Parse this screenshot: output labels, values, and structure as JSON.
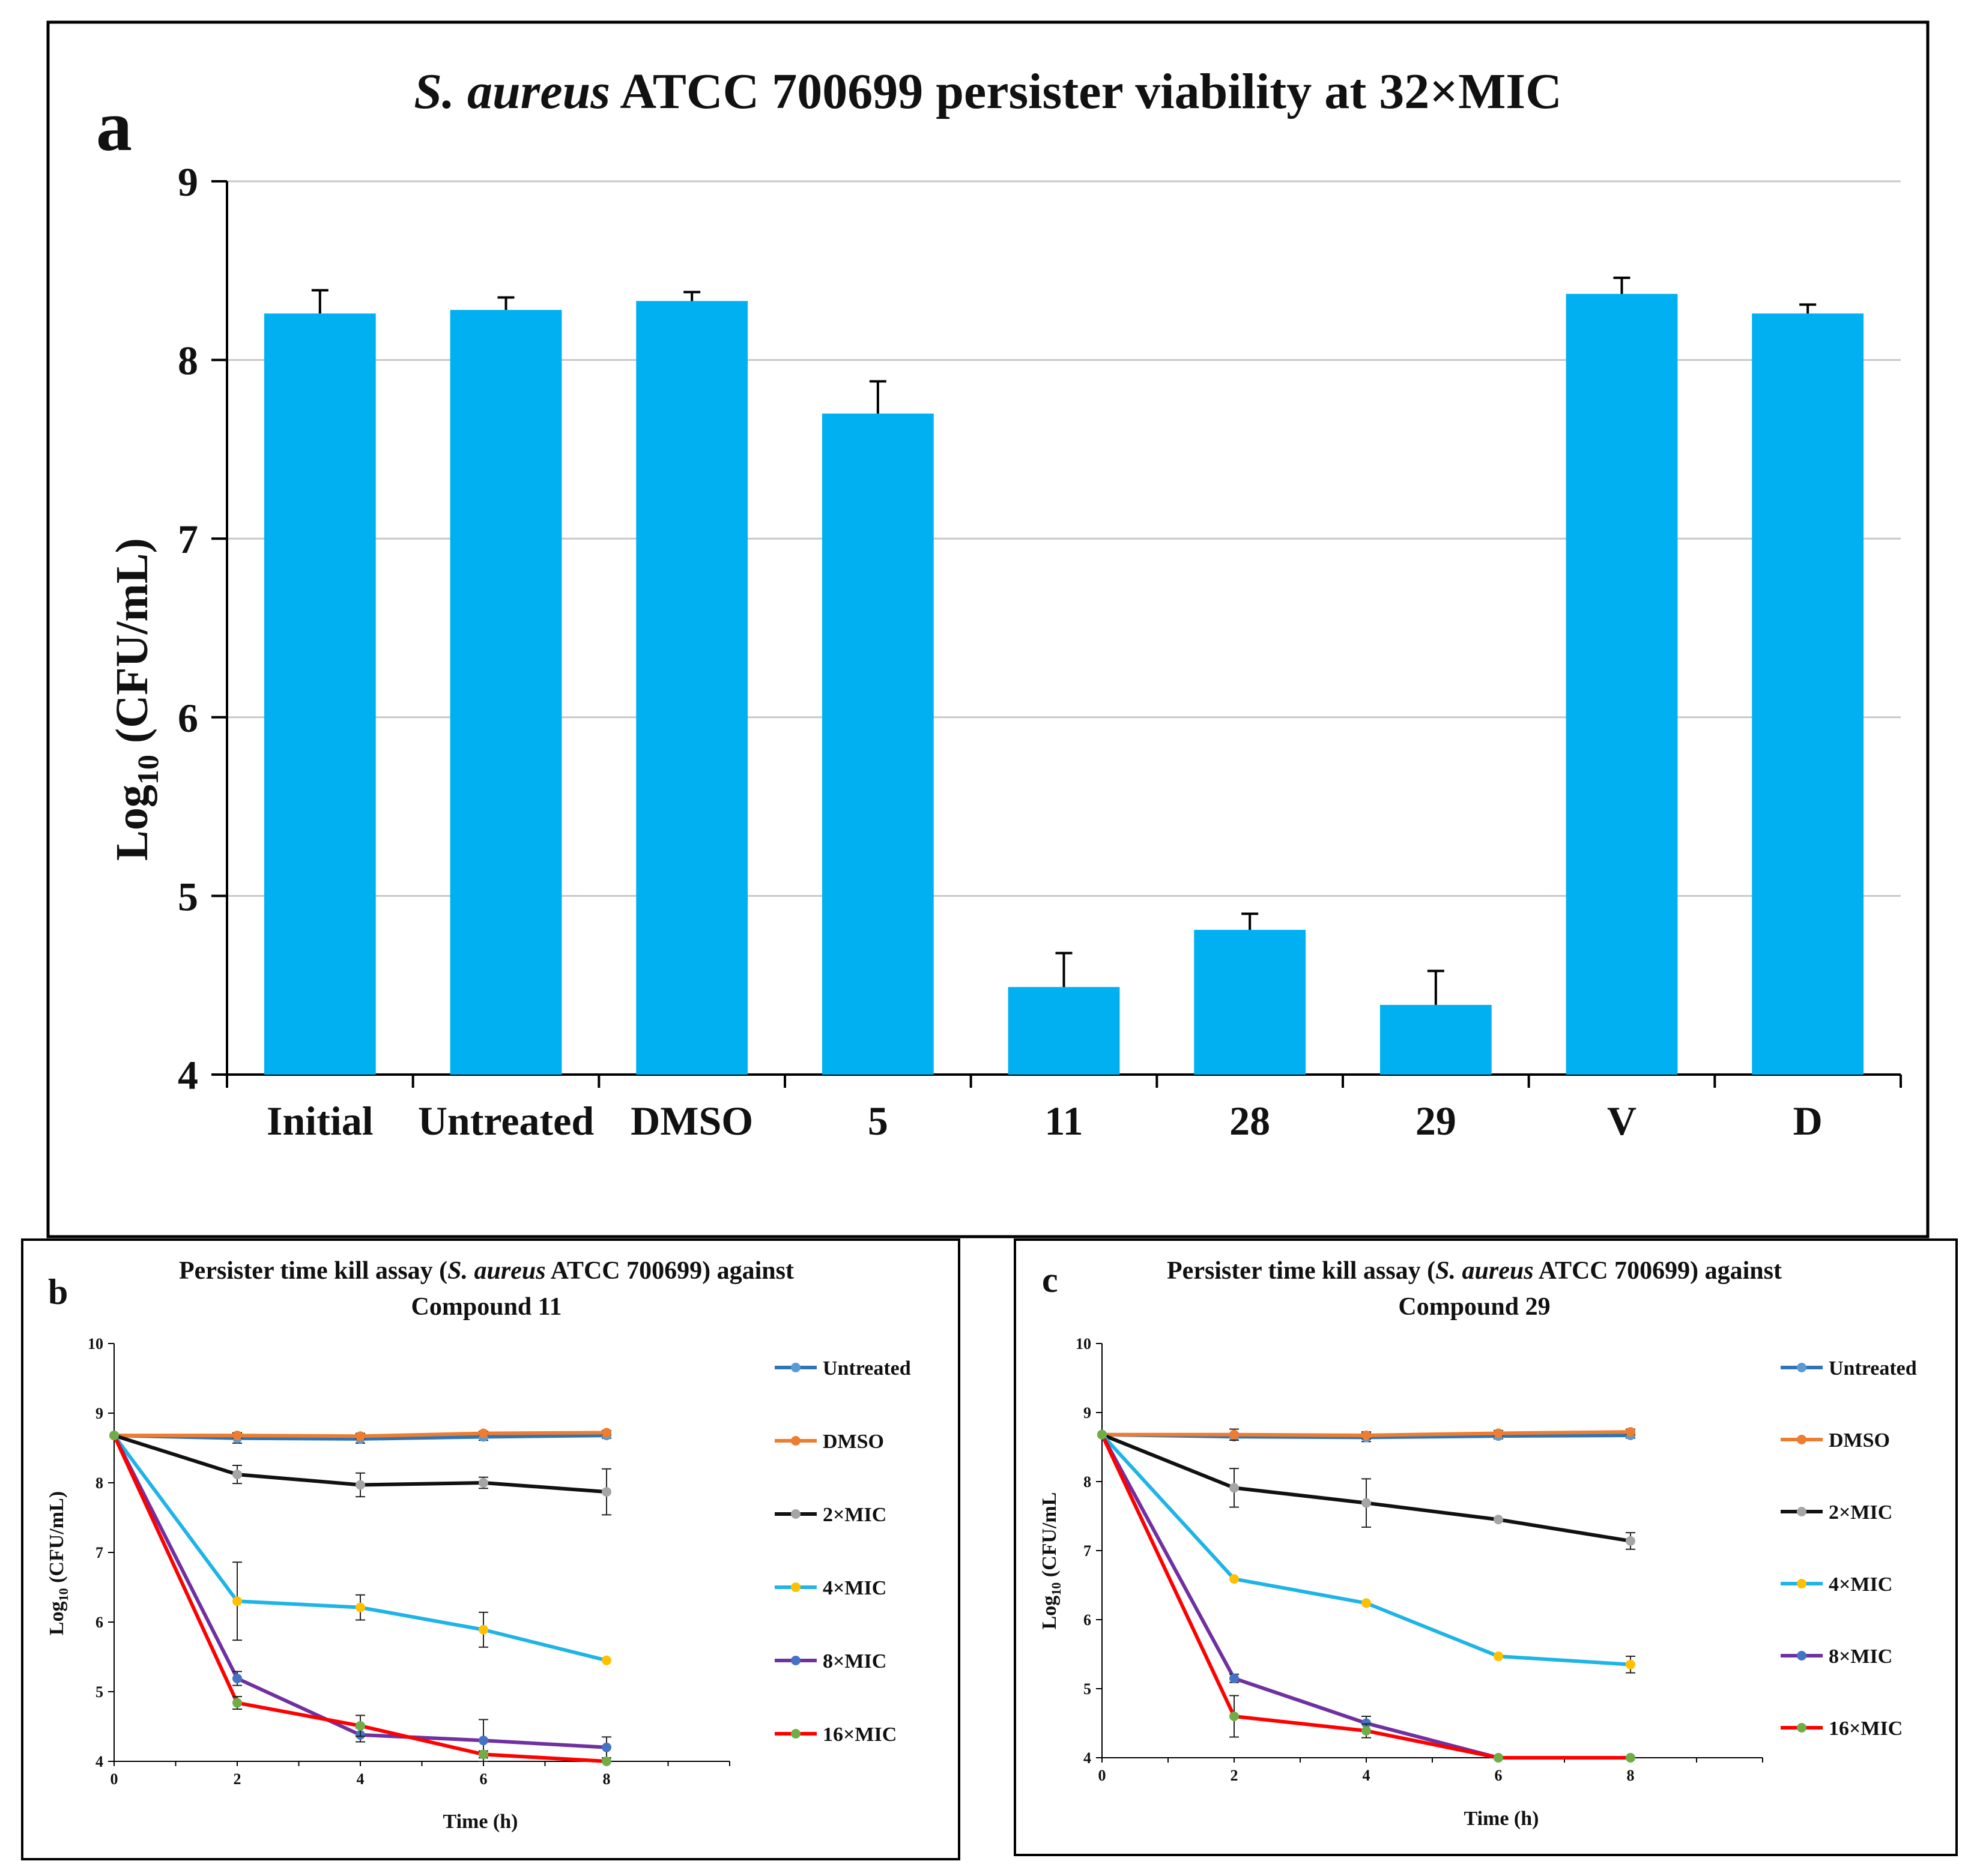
{
  "chart_data": [
    {
      "panel": "a",
      "type": "bar",
      "title": {
        "italic": "S. aureus",
        "rest": " ATCC 700699 persister viability at 32×MIC"
      },
      "xlabel": "",
      "ylabel": {
        "main": "Log",
        "sub": "10",
        "rest": " (CFU/mL)"
      },
      "ylim": [
        4,
        9
      ],
      "yticks": [
        4,
        5,
        6,
        7,
        8,
        9
      ],
      "grid": true,
      "bar_color": "#00b0f0",
      "categories": [
        "Initial",
        "Untreated",
        "DMSO",
        "5",
        "11",
        "28",
        "29",
        "V",
        "D"
      ],
      "values": [
        8.26,
        8.28,
        8.33,
        7.7,
        4.49,
        4.81,
        4.39,
        8.37,
        8.26
      ],
      "errors": [
        0.13,
        0.07,
        0.05,
        0.18,
        0.19,
        0.09,
        0.19,
        0.09,
        0.05
      ]
    },
    {
      "panel": "b",
      "type": "line",
      "title": [
        "Persister time kill assay (",
        "S. aureus",
        " ATCC 700699) against",
        "Compound 11"
      ],
      "xlabel": "Time (h)",
      "ylabel": {
        "main": "Log",
        "sub": "10",
        "rest": " (CFU/mL)"
      },
      "x": [
        0,
        2,
        4,
        6,
        8
      ],
      "xticks": [
        0,
        2,
        4,
        6,
        8
      ],
      "xlim": [
        0,
        10
      ],
      "ylim": [
        4,
        10
      ],
      "yticks": [
        4,
        5,
        6,
        7,
        8,
        9,
        10
      ],
      "legend": "right",
      "series": [
        {
          "name": "Untreated",
          "color": "#2e75b6",
          "marker": "#5b9bd5",
          "values": [
            8.68,
            8.64,
            8.63,
            8.66,
            8.68
          ],
          "errors": [
            0,
            0.07,
            0.06,
            0.05,
            0.04
          ]
        },
        {
          "name": "DMSO",
          "color": "#ed7d31",
          "marker": "#ed7d31",
          "values": [
            8.68,
            8.68,
            8.67,
            8.71,
            8.72
          ],
          "errors": [
            0,
            0.04,
            0.04,
            0.03,
            0.03
          ]
        },
        {
          "name": "2×MIC",
          "color": "#111111",
          "marker": "#a5a5a5",
          "values": [
            8.68,
            8.12,
            7.97,
            8.0,
            7.87
          ],
          "errors": [
            0,
            0.13,
            0.17,
            0.08,
            0.33
          ]
        },
        {
          "name": "4×MIC",
          "color": "#1eb4e6",
          "marker": "#ffc000",
          "values": [
            8.68,
            6.3,
            6.21,
            5.89,
            5.45
          ],
          "errors": [
            0,
            0.56,
            0.18,
            0.25,
            0
          ]
        },
        {
          "name": "8×MIC",
          "color": "#7030a0",
          "marker": "#4472c4",
          "values": [
            8.68,
            5.19,
            4.38,
            4.3,
            4.2
          ],
          "errors": [
            0,
            0.1,
            0.1,
            0.3,
            0.15
          ]
        },
        {
          "name": "16×MIC",
          "color": "#ff0000",
          "marker": "#70ad47",
          "values": [
            8.68,
            4.84,
            4.51,
            4.1,
            4.0
          ],
          "errors": [
            0,
            0.09,
            0.15,
            0.05,
            0
          ]
        }
      ]
    },
    {
      "panel": "c",
      "type": "line",
      "title": [
        "Persister time kill assay (",
        "S. aureus",
        " ATCC 700699) against",
        "Compound 29"
      ],
      "xlabel": "Time (h)",
      "ylabel": {
        "main": "Log",
        "sub": "10",
        "rest": " (CFU/mL"
      },
      "x": [
        0,
        2,
        4,
        6,
        8
      ],
      "xticks": [
        0,
        2,
        4,
        6,
        8
      ],
      "xlim": [
        0,
        10
      ],
      "ylim": [
        4,
        10
      ],
      "yticks": [
        4,
        5,
        6,
        7,
        8,
        9,
        10
      ],
      "legend": "right",
      "series": [
        {
          "name": "Untreated",
          "color": "#2e75b6",
          "marker": "#5b9bd5",
          "values": [
            8.68,
            8.65,
            8.64,
            8.66,
            8.67
          ],
          "errors": [
            0,
            0.05,
            0.06,
            0.04,
            0.04
          ]
        },
        {
          "name": "DMSO",
          "color": "#ed7d31",
          "marker": "#ed7d31",
          "values": [
            8.68,
            8.68,
            8.67,
            8.7,
            8.72
          ],
          "errors": [
            0,
            0.08,
            0.05,
            0.04,
            0.04
          ]
        },
        {
          "name": "2×MIC",
          "color": "#111111",
          "marker": "#a5a5a5",
          "values": [
            8.68,
            7.91,
            7.69,
            7.45,
            7.14
          ],
          "errors": [
            0,
            0.28,
            0.35,
            0,
            0.12
          ]
        },
        {
          "name": "4×MIC",
          "color": "#1eb4e6",
          "marker": "#ffc000",
          "values": [
            8.68,
            6.59,
            6.24,
            5.47,
            5.35
          ],
          "errors": [
            0,
            0,
            0,
            0,
            0.12
          ]
        },
        {
          "name": "8×MIC",
          "color": "#7030a0",
          "marker": "#4472c4",
          "values": [
            8.68,
            5.15,
            4.5,
            4.0,
            4.0
          ],
          "errors": [
            0,
            0.06,
            0.1,
            0,
            0
          ]
        },
        {
          "name": "16×MIC",
          "color": "#ff0000",
          "marker": "#70ad47",
          "values": [
            8.68,
            4.6,
            4.39,
            4.0,
            4.0
          ],
          "errors": [
            0,
            0.3,
            0.1,
            0,
            0
          ]
        }
      ]
    }
  ]
}
